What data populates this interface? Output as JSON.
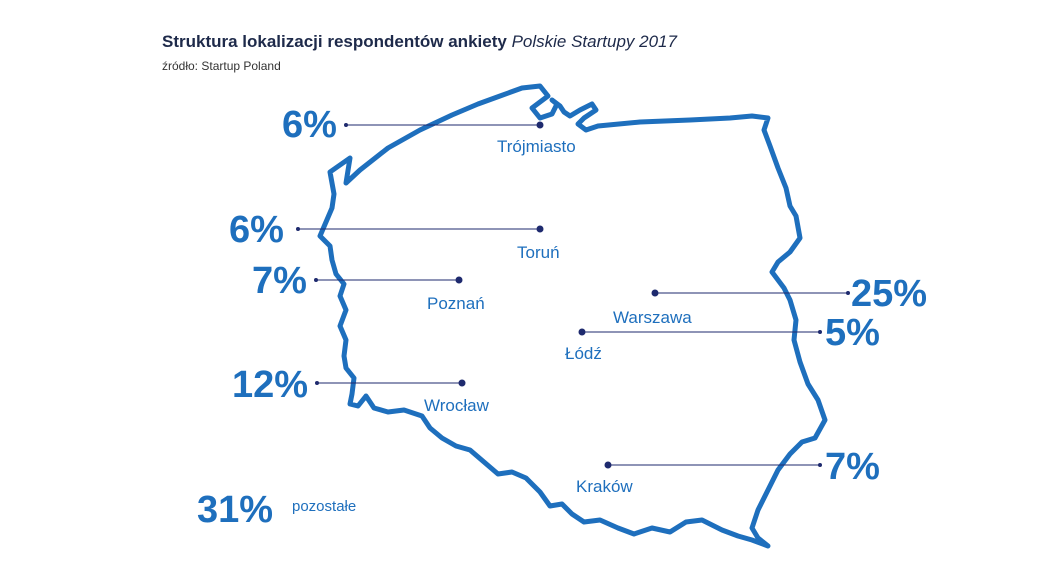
{
  "title": {
    "bold": "Struktura lokalizacji respondentów ankiety",
    "italic": "Polskie Startupy 2017"
  },
  "source": "źródło: Startup Poland",
  "colors": {
    "outline": "#1e6fbd",
    "percent": "#1e6fbd",
    "city": "#1e6fbd",
    "dot": "#1e2a6e",
    "title": "#1e2a4a"
  },
  "locations": [
    {
      "city": "Trójmiasto",
      "percent": "6%"
    },
    {
      "city": "Toruń",
      "percent": "6%"
    },
    {
      "city": "Poznań",
      "percent": "7%"
    },
    {
      "city": "Wrocław",
      "percent": "12%"
    },
    {
      "city": "Warszawa",
      "percent": "25%"
    },
    {
      "city": "Łódź",
      "percent": "5%"
    },
    {
      "city": "Kraków",
      "percent": "7%"
    }
  ],
  "other": {
    "percent": "31%",
    "label": "pozostałe"
  }
}
